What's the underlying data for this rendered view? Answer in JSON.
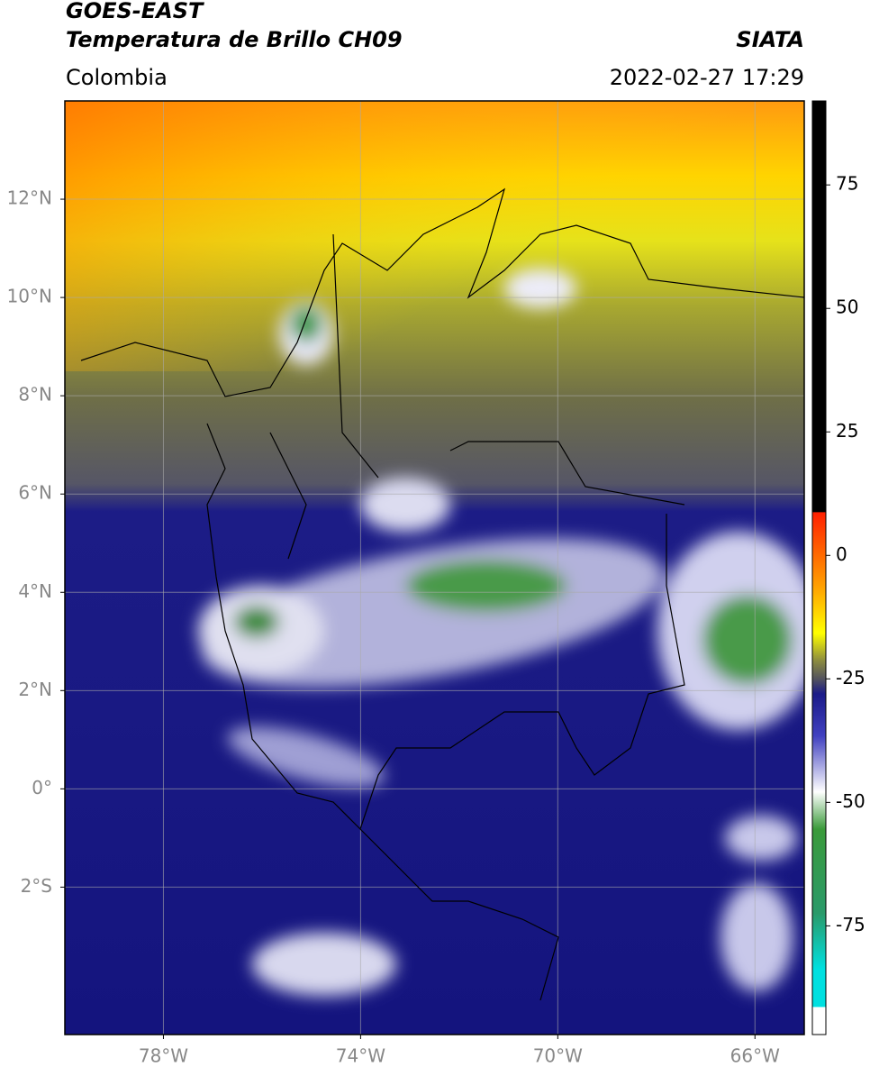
{
  "header": {
    "title": "GOES-EAST",
    "subtitle": "Temperatura de Brillo CH09",
    "source": "SIATA",
    "region": "Colombia",
    "datetime": "2022-02-27 17:29"
  },
  "map": {
    "xlim": [
      -80,
      -65
    ],
    "ylim": [
      -5,
      14
    ],
    "xticks": [
      {
        "value": -78,
        "label": "78°W"
      },
      {
        "value": -74,
        "label": "74°W"
      },
      {
        "value": -70,
        "label": "70°W"
      },
      {
        "value": -66,
        "label": "66°W"
      }
    ],
    "yticks": [
      {
        "value": 12,
        "label": "12°N"
      },
      {
        "value": 10,
        "label": "10°N"
      },
      {
        "value": 8,
        "label": "8°N"
      },
      {
        "value": 6,
        "label": "6°N"
      },
      {
        "value": 4,
        "label": "4°N"
      },
      {
        "value": 2,
        "label": "2°N"
      },
      {
        "value": 0,
        "label": "0°"
      },
      {
        "value": -2,
        "label": "2°S"
      }
    ]
  },
  "colorbar": {
    "lim": [
      -97,
      92
    ],
    "ticks": [
      75,
      50,
      25,
      0,
      -25,
      -50,
      -75
    ]
  }
}
